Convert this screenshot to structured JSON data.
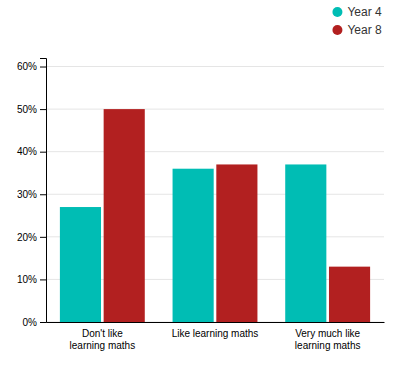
{
  "chart_data": {
    "type": "bar",
    "categories": [
      "Don't like\nlearning maths",
      "Like learning maths",
      "Very much like\nlearning maths"
    ],
    "series": [
      {
        "name": "Year 4",
        "color": "#00BDB4",
        "values": [
          27,
          36,
          37
        ]
      },
      {
        "name": "Year 8",
        "color": "#B22020",
        "values": [
          50,
          37,
          13
        ]
      }
    ],
    "ylim": [
      0,
      62
    ],
    "yticks": [
      {
        "value": 0,
        "label": "0%"
      },
      {
        "value": 10,
        "label": "10%"
      },
      {
        "value": 20,
        "label": "20%"
      },
      {
        "value": 30,
        "label": "30%"
      },
      {
        "value": 40,
        "label": "40%"
      },
      {
        "value": 50,
        "label": "50%"
      },
      {
        "value": 60,
        "label": "60%"
      }
    ],
    "grid": true,
    "legend": "upper right"
  }
}
